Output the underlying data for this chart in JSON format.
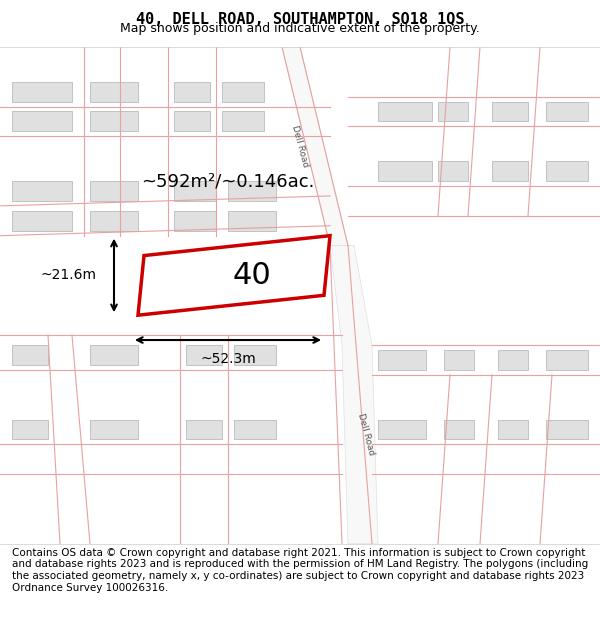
{
  "title": "40, DELL ROAD, SOUTHAMPTON, SO18 1QS",
  "subtitle": "Map shows position and indicative extent of the property.",
  "footer": "Contains OS data © Crown copyright and database right 2021. This information is subject to Crown copyright and database rights 2023 and is reproduced with the permission of HM Land Registry. The polygons (including the associated geometry, namely x, y co-ordinates) are subject to Crown copyright and database rights 2023 Ordnance Survey 100026316.",
  "area_label": "~592m²/~0.146ac.",
  "width_label": "~52.3m",
  "height_label": "~21.6m",
  "plot_number": "40",
  "bg_color": "#f5f5f5",
  "map_bg": "#ffffff",
  "road_fill": "#e8e8e8",
  "road_stroke": "#d0d0d0",
  "building_fill": "#e0e0e0",
  "building_stroke": "#cccccc",
  "road_line_color": "#e8a0a0",
  "property_color": "#cc0000",
  "dim_line_color": "#000000",
  "title_fontsize": 11,
  "subtitle_fontsize": 9,
  "footer_fontsize": 7.5,
  "label_fontsize": 13,
  "plot_num_fontsize": 22
}
